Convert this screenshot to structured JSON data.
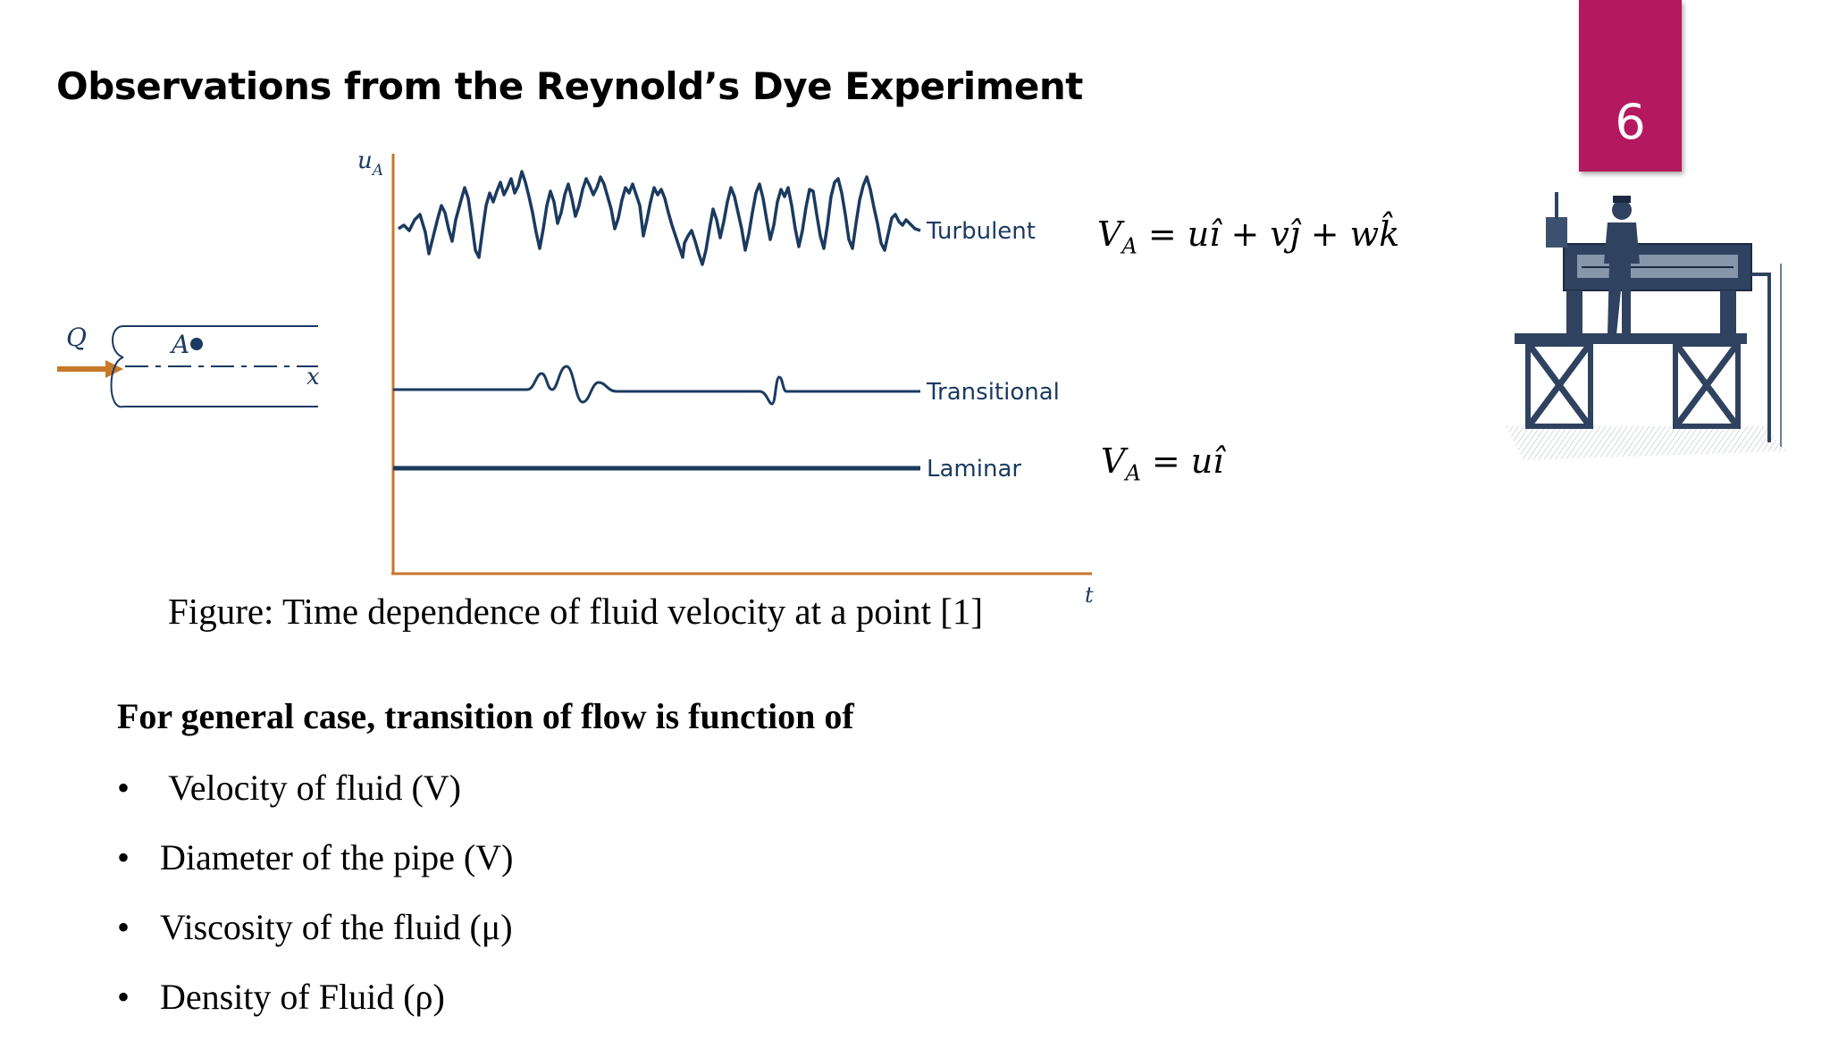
{
  "slide": {
    "title": "Observations from the Reynold’s Dye Experiment",
    "page_number": "6"
  },
  "pipe_diagram": {
    "flow_label": "Q",
    "point_label": "A",
    "axis_label": "x"
  },
  "chart": {
    "y_axis_label": "u",
    "y_axis_sub": "A",
    "x_axis_label": "t",
    "curves": [
      "Turbulent",
      "Transitional",
      "Laminar"
    ],
    "axis_color": "#c8782a",
    "curve_color": "#1b3a5f"
  },
  "equations": {
    "turbulent": {
      "lhs": "V",
      "sub": "A",
      "rhs": "= uî + vĵ + wk̂"
    },
    "laminar": {
      "lhs": "V",
      "sub": "A",
      "rhs": "= uî"
    }
  },
  "caption": "Figure: Time dependence of fluid velocity at a point [1]",
  "list": {
    "heading": "For general case, transition of flow is function of",
    "bullet": "•",
    "items": [
      " Velocity of fluid (V)",
      "Diameter of the pipe (V)",
      "Viscosity of the fluid (μ)",
      "Density of Fluid (ρ)"
    ]
  },
  "accent_color": "#b4185f",
  "illustration": "reynolds-apparatus-engraving"
}
